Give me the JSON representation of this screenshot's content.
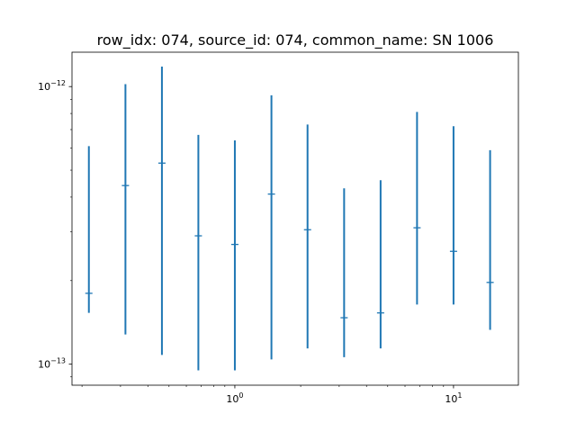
{
  "chart_data": {
    "type": "scatter",
    "title": "row_idx: 074, source_id: 074, common_name: SN 1006",
    "xlabel": "",
    "ylabel": "",
    "xscale": "log",
    "yscale": "log",
    "xlim": [
      0.18,
      19.8
    ],
    "ylim": [
      8.4e-14,
      1.33e-12
    ],
    "grid": false,
    "x_major_ticks": [
      {
        "value": 1,
        "base": "10",
        "exp": "0"
      },
      {
        "value": 10,
        "base": "10",
        "exp": "1"
      }
    ],
    "y_major_ticks": [
      {
        "value": 1e-13,
        "base": "10",
        "exp": "−13"
      },
      {
        "value": 1e-12,
        "base": "10",
        "exp": "−12"
      }
    ],
    "color": "#1f77b4",
    "series": [
      {
        "points": [
          {
            "x": 0.215,
            "y": 1.8e-13,
            "ylo": 1.53e-13,
            "yhi": 6.1e-13
          },
          {
            "x": 0.316,
            "y": 4.4e-13,
            "ylo": 1.28e-13,
            "yhi": 1.02e-12
          },
          {
            "x": 0.464,
            "y": 5.3e-13,
            "ylo": 1.08e-13,
            "yhi": 1.18e-12
          },
          {
            "x": 0.681,
            "y": 2.9e-13,
            "ylo": 9.5e-14,
            "yhi": 6.7e-13
          },
          {
            "x": 1.0,
            "y": 2.7e-13,
            "ylo": 9.5e-14,
            "yhi": 6.4e-13
          },
          {
            "x": 1.47,
            "y": 4.1e-13,
            "ylo": 1.04e-13,
            "yhi": 9.3e-13
          },
          {
            "x": 2.15,
            "y": 3.05e-13,
            "ylo": 1.14e-13,
            "yhi": 7.3e-13
          },
          {
            "x": 3.16,
            "y": 1.47e-13,
            "ylo": 1.06e-13,
            "yhi": 4.3e-13
          },
          {
            "x": 4.64,
            "y": 1.53e-13,
            "ylo": 1.14e-13,
            "yhi": 4.6e-13
          },
          {
            "x": 6.81,
            "y": 3.1e-13,
            "ylo": 1.64e-13,
            "yhi": 8.1e-13
          },
          {
            "x": 10.0,
            "y": 2.55e-13,
            "ylo": 1.64e-13,
            "yhi": 7.2e-13
          },
          {
            "x": 14.7,
            "y": 1.97e-13,
            "ylo": 1.33e-13,
            "yhi": 5.9e-13
          }
        ]
      }
    ]
  }
}
